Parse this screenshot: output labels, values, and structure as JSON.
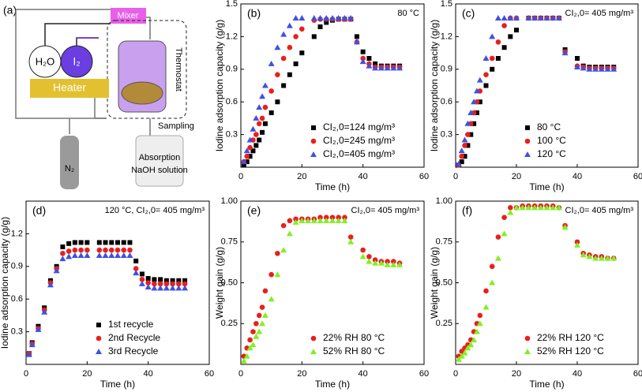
{
  "diagram": {
    "label": "(a)",
    "mixer": "Mixer",
    "thermostat": "Thermostat",
    "water": "H₂O",
    "iodine": "I₂",
    "heater": "Heater",
    "sampling": "Sampling",
    "nitrogen": "N₂",
    "absorption": "Absorption",
    "solution": "NaOH solution"
  },
  "chart_data": [
    {
      "type": "scatter",
      "title": "(b)",
      "annotation": "80 °C",
      "x_label": "Time (h)",
      "y_label": "Iodine adsorption capacity (g/g)",
      "xlim": [
        0,
        60
      ],
      "xticks": [
        0,
        20,
        40,
        60
      ],
      "ylim": [
        0,
        1.5
      ],
      "yticks": [
        0.3,
        0.6,
        0.9,
        1.2,
        1.5
      ],
      "legend": "lower right",
      "x": [
        1,
        2,
        3,
        4,
        5,
        6,
        7,
        8,
        10,
        12,
        14,
        16,
        18,
        20,
        24,
        26,
        28,
        30,
        32,
        34,
        36,
        38,
        40,
        42,
        44,
        46,
        48,
        50,
        52
      ],
      "series": [
        {
          "name": "CI₂,0=124 mg/m³",
          "color": "#000000",
          "marker": "square",
          "values": [
            0.02,
            0.05,
            0.1,
            0.15,
            0.2,
            0.25,
            0.32,
            0.4,
            0.5,
            0.6,
            0.75,
            0.85,
            0.95,
            1.05,
            1.2,
            1.29,
            1.33,
            1.35,
            1.36,
            1.36,
            1.36,
            1.2,
            1.06,
            1.0,
            0.95,
            0.93,
            0.93,
            0.93,
            0.93
          ]
        },
        {
          "name": "CI₂,0=245 mg/m³",
          "color": "#e8201c",
          "marker": "circle",
          "values": [
            0.05,
            0.1,
            0.18,
            0.25,
            0.3,
            0.4,
            0.45,
            0.55,
            0.7,
            0.85,
            1.0,
            1.1,
            1.2,
            1.27,
            1.35,
            1.36,
            1.36,
            1.36,
            1.36,
            1.36,
            1.36,
            1.15,
            1.0,
            0.95,
            0.92,
            0.92,
            0.92,
            0.92,
            0.92
          ]
        },
        {
          "name": "CI₂,0=405 mg/m³",
          "color": "#3f51e0",
          "marker": "triangle",
          "values": [
            0.05,
            0.15,
            0.25,
            0.35,
            0.45,
            0.55,
            0.65,
            0.75,
            0.95,
            1.1,
            1.22,
            1.3,
            1.37,
            1.37,
            1.37,
            1.37,
            1.37,
            1.37,
            1.37,
            1.37,
            1.37,
            1.15,
            0.97,
            0.93,
            0.91,
            0.91,
            0.91,
            0.91,
            0.91
          ]
        }
      ]
    },
    {
      "type": "scatter",
      "title": "(c)",
      "annotation": "CI₂,0= 405 mg/m³",
      "x_label": "Time (h)",
      "y_label": "Iodine adsorption capacity (g/g)",
      "xlim": [
        0,
        60
      ],
      "xticks": [
        0,
        20,
        40,
        60
      ],
      "ylim": [
        0,
        1.5
      ],
      "yticks": [
        0.3,
        0.6,
        0.9,
        1.2,
        1.5
      ],
      "legend": "lower right",
      "x": [
        1,
        2,
        3,
        4,
        5,
        6,
        7,
        8,
        10,
        12,
        14,
        16,
        18,
        20,
        24,
        26,
        28,
        30,
        32,
        34,
        36,
        40,
        42,
        44,
        46,
        48,
        50,
        52
      ],
      "series": [
        {
          "name": "80 °C",
          "color": "#000000",
          "marker": "square",
          "values": [
            0.02,
            0.05,
            0.1,
            0.2,
            0.3,
            0.4,
            0.5,
            0.6,
            0.75,
            0.9,
            1.0,
            1.1,
            1.2,
            1.26,
            1.37,
            1.37,
            1.37,
            1.37,
            1.37,
            1.37,
            1.08,
            1.0,
            0.93,
            0.92,
            0.92,
            0.92,
            0.92,
            0.92
          ]
        },
        {
          "name": "100 °C",
          "color": "#e8201c",
          "marker": "circle",
          "values": [
            0.02,
            0.1,
            0.2,
            0.3,
            0.4,
            0.5,
            0.6,
            0.7,
            0.85,
            1.0,
            1.15,
            1.3,
            1.37,
            1.37,
            1.37,
            1.37,
            1.37,
            1.37,
            1.37,
            1.37,
            1.06,
            0.93,
            0.92,
            0.91,
            0.91,
            0.91,
            0.91,
            0.91
          ]
        },
        {
          "name": "120 °C",
          "color": "#3f51e0",
          "marker": "triangle",
          "values": [
            0.03,
            0.15,
            0.25,
            0.4,
            0.5,
            0.6,
            0.7,
            0.8,
            1.0,
            1.2,
            1.37,
            1.37,
            1.37,
            1.37,
            1.37,
            1.37,
            1.37,
            1.37,
            1.37,
            1.37,
            1.05,
            0.92,
            0.91,
            0.9,
            0.9,
            0.9,
            0.9,
            0.9
          ]
        }
      ]
    },
    {
      "type": "scatter",
      "title": "(d)",
      "annotation": "120 °C, CI₂,0= 405 mg/m³",
      "x_label": "Time (h)",
      "y_label": "Iodine adsorption capacity (g/g)",
      "xlim": [
        0,
        60
      ],
      "xticks": [
        0,
        20,
        40,
        60
      ],
      "ylim": [
        0,
        1.5
      ],
      "yticks": [
        0.3,
        0.6,
        0.9,
        1.2
      ],
      "legend": "lower right",
      "x": [
        1,
        2,
        4,
        6,
        8,
        10,
        12,
        14,
        16,
        18,
        20,
        24,
        26,
        28,
        30,
        32,
        34,
        36,
        38,
        40,
        42,
        44,
        46,
        48,
        50,
        52
      ],
      "series": [
        {
          "name": "1st recycle",
          "color": "#000000",
          "marker": "square",
          "values": [
            0.1,
            0.2,
            0.35,
            0.52,
            0.77,
            0.9,
            1.08,
            1.11,
            1.12,
            1.12,
            1.12,
            1.12,
            1.12,
            1.12,
            1.12,
            1.12,
            1.12,
            0.95,
            0.83,
            0.79,
            0.78,
            0.78,
            0.77,
            0.77,
            0.77,
            0.77
          ]
        },
        {
          "name": "2nd Recycle",
          "color": "#e8201c",
          "marker": "circle",
          "values": [
            0.1,
            0.19,
            0.33,
            0.5,
            0.75,
            0.88,
            1.02,
            1.04,
            1.05,
            1.05,
            1.05,
            1.05,
            1.05,
            1.05,
            1.05,
            1.05,
            1.05,
            0.88,
            0.78,
            0.75,
            0.74,
            0.74,
            0.74,
            0.74,
            0.74,
            0.74
          ]
        },
        {
          "name": "3rd Recycle",
          "color": "#3f51e0",
          "marker": "triangle",
          "values": [
            0.09,
            0.18,
            0.32,
            0.48,
            0.73,
            0.86,
            0.97,
            0.99,
            1.0,
            1.0,
            1.0,
            1.0,
            1.0,
            1.0,
            1.0,
            1.0,
            1.0,
            0.84,
            0.74,
            0.71,
            0.7,
            0.7,
            0.7,
            0.7,
            0.7,
            0.7
          ]
        }
      ]
    },
    {
      "type": "scatter",
      "title": "(e)",
      "annotation": "CI₂,0= 405 mg/m³",
      "x_label": "Time (h)",
      "y_label": "Weight gain (g/g)",
      "xlim": [
        0,
        60
      ],
      "xticks": [
        0,
        20,
        40,
        60
      ],
      "ylim": [
        0,
        1
      ],
      "yticks": [
        0.25,
        {
          "value": 0.5,
          "label": "0.50"
        },
        0.75,
        {
          "value": 1,
          "label": "1.00"
        }
      ],
      "legend": "lower right",
      "x": [
        1,
        2,
        3,
        4,
        5,
        6,
        7,
        8,
        10,
        12,
        14,
        16,
        18,
        20,
        22,
        24,
        26,
        28,
        30,
        32,
        34,
        36,
        40,
        42,
        44,
        46,
        48,
        50,
        52
      ],
      "series": [
        {
          "name": "22% RH 80 °C",
          "color": "#e8201c",
          "marker": "circle",
          "values": [
            0.05,
            0.1,
            0.15,
            0.2,
            0.25,
            0.3,
            0.35,
            0.45,
            0.55,
            0.68,
            0.85,
            0.88,
            0.89,
            0.89,
            0.89,
            0.89,
            0.9,
            0.9,
            0.9,
            0.9,
            0.9,
            0.78,
            0.7,
            0.66,
            0.64,
            0.63,
            0.63,
            0.63,
            0.62
          ]
        },
        {
          "name": "52% RH 80 °C",
          "color": "#80f020",
          "marker": "triangle",
          "values": [
            0.02,
            0.05,
            0.1,
            0.12,
            0.17,
            0.2,
            0.25,
            0.3,
            0.4,
            0.55,
            0.7,
            0.8,
            0.87,
            0.88,
            0.88,
            0.88,
            0.88,
            0.88,
            0.88,
            0.88,
            0.88,
            0.75,
            0.66,
            0.63,
            0.62,
            0.62,
            0.61,
            0.61,
            0.61
          ]
        }
      ]
    },
    {
      "type": "scatter",
      "title": "(f)",
      "annotation": "CI₂,0= 405 mg/m³",
      "x_label": "Time (h)",
      "y_label": "Weight gain (g/g)",
      "xlim": [
        0,
        60
      ],
      "xticks": [
        0,
        20,
        40,
        60
      ],
      "ylim": [
        0,
        1
      ],
      "yticks": [
        0.25,
        {
          "value": 0.5,
          "label": "0.50"
        },
        0.75,
        {
          "value": 1,
          "label": "1.00"
        }
      ],
      "legend": "lower right",
      "x": [
        1,
        2,
        3,
        4,
        5,
        6,
        7,
        8,
        10,
        12,
        14,
        16,
        18,
        20,
        22,
        24,
        26,
        28,
        30,
        32,
        34,
        36,
        40,
        42,
        44,
        46,
        48,
        50,
        52
      ],
      "series": [
        {
          "name": "22% RH 120 °C",
          "color": "#e8201c",
          "marker": "circle",
          "values": [
            0.05,
            0.08,
            0.1,
            0.12,
            0.15,
            0.2,
            0.25,
            0.3,
            0.45,
            0.6,
            0.78,
            0.9,
            0.96,
            0.96,
            0.97,
            0.97,
            0.97,
            0.97,
            0.97,
            0.97,
            0.96,
            0.85,
            0.75,
            0.68,
            0.67,
            0.66,
            0.66,
            0.65,
            0.65
          ]
        },
        {
          "name": "52% RH 120 °C",
          "color": "#80f020",
          "marker": "triangle",
          "values": [
            0.03,
            0.05,
            0.07,
            0.1,
            0.12,
            0.15,
            0.2,
            0.25,
            0.35,
            0.5,
            0.65,
            0.8,
            0.93,
            0.96,
            0.96,
            0.96,
            0.96,
            0.96,
            0.96,
            0.96,
            0.96,
            0.84,
            0.73,
            0.67,
            0.66,
            0.65,
            0.65,
            0.65,
            0.65
          ]
        }
      ]
    }
  ]
}
